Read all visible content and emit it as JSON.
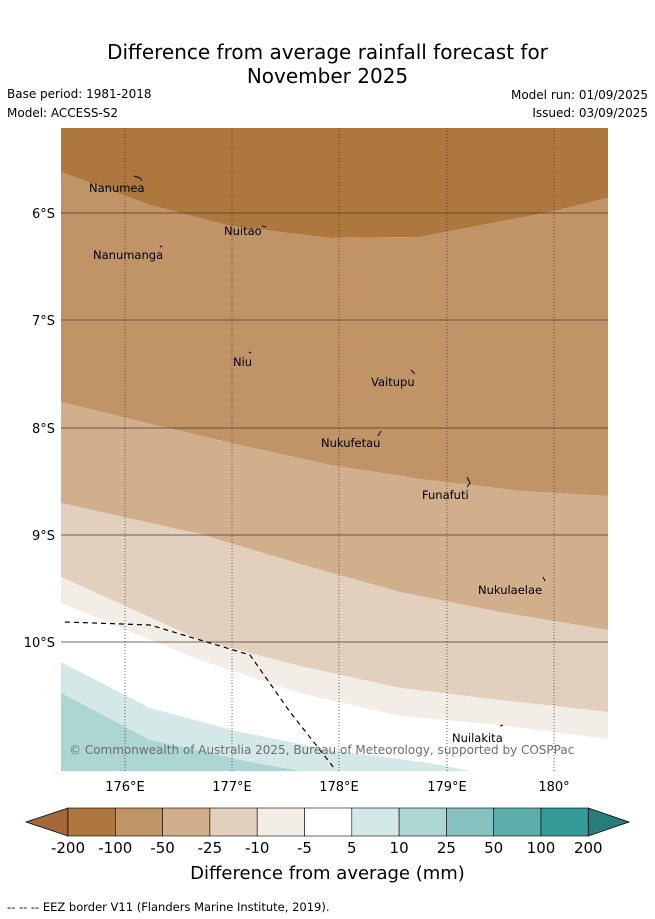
{
  "title_line1": "Difference from average rainfall forecast for",
  "title_line2": "November 2025",
  "base_period": "Base period: 1981-2018",
  "model": "Model: ACCESS-S2",
  "model_run": "Model run: 01/09/2025",
  "issued": "Issued: 03/09/2025",
  "copyright": "© Commonwealth of Australia 2025, Bureau of Meteorology, supported by COSPPac",
  "lat_labels": [
    "6°S",
    "7°S",
    "8°S",
    "9°S",
    "10°S"
  ],
  "lon_labels": [
    "176°E",
    "177°E",
    "178°E",
    "179°E",
    "180°"
  ],
  "islands": [
    "Nanumea",
    "Nuitao",
    "Nanumanga",
    "Niu",
    "Vaitupu",
    "Nukufetau",
    "Funafuti",
    "Nukulaelae",
    "Nuilakita"
  ],
  "colorbar": {
    "title": "Difference from average (mm)",
    "ticks": [
      "-200",
      "-100",
      "-50",
      "-25",
      "-10",
      "-5",
      "5",
      "10",
      "25",
      "50",
      "100",
      "200"
    ],
    "colors": [
      "#a2683a",
      "#ae773e",
      "#c09466",
      "#d1ae8c",
      "#e2cfbd",
      "#f3ede7",
      "#ffffff",
      "#d4e8e7",
      "#acd5d3",
      "#86c1c0",
      "#5cadac",
      "#349b99",
      "#2a7c7a"
    ]
  },
  "footer": "--  --  -- EEZ border V11 (Flanders Marine Institute, 2019)."
}
